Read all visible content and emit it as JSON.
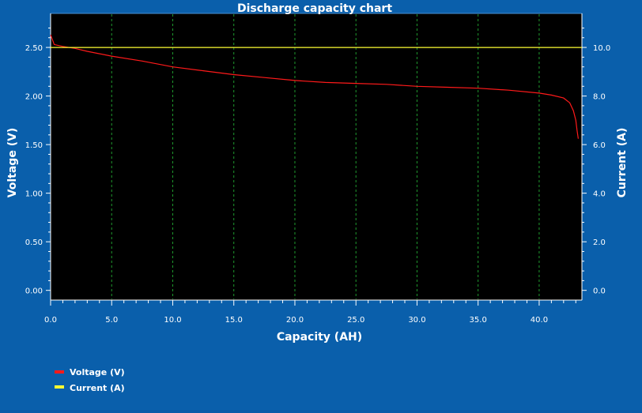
{
  "chart_data": {
    "type": "line",
    "title": "Discharge capacity chart",
    "xlabel": "Capacity (AH)",
    "ylabel": "Voltage (V)",
    "y2label": "Current (A)",
    "xlim": [
      0,
      43.5
    ],
    "ylim": [
      -0.1,
      2.85
    ],
    "y2lim": [
      -0.4,
      11.4
    ],
    "x_ticks": [
      "0.0",
      "5.0",
      "10.0",
      "15.0",
      "20.0",
      "25.0",
      "30.0",
      "35.0",
      "40.0"
    ],
    "y_ticks": [
      "0.00",
      "0.50",
      "1.00",
      "1.50",
      "2.00",
      "2.50"
    ],
    "y2_ticks": [
      "0.0",
      "2.0",
      "4.0",
      "6.0",
      "8.0",
      "10.0"
    ],
    "grid": "vertical dashed",
    "legend_position": "bottom-left",
    "series": [
      {
        "name": "Voltage (V)",
        "axis": "left",
        "color": "#ff1a1a",
        "x": [
          0,
          0.3,
          1,
          2,
          3,
          5,
          7.5,
          10,
          12.5,
          15,
          17.5,
          20,
          22.5,
          25,
          27.5,
          30,
          32.5,
          35,
          37.5,
          40,
          41,
          42,
          42.5,
          42.8,
          43,
          43.1,
          43.2
        ],
        "y": [
          2.63,
          2.53,
          2.51,
          2.49,
          2.46,
          2.41,
          2.36,
          2.3,
          2.26,
          2.22,
          2.19,
          2.16,
          2.14,
          2.13,
          2.12,
          2.1,
          2.09,
          2.08,
          2.06,
          2.03,
          2.01,
          1.98,
          1.93,
          1.85,
          1.75,
          1.65,
          1.56
        ]
      },
      {
        "name": "Current (A)",
        "axis": "right",
        "color": "#ffff33",
        "x": [
          0,
          43.5
        ],
        "y": [
          10,
          10
        ]
      }
    ]
  }
}
